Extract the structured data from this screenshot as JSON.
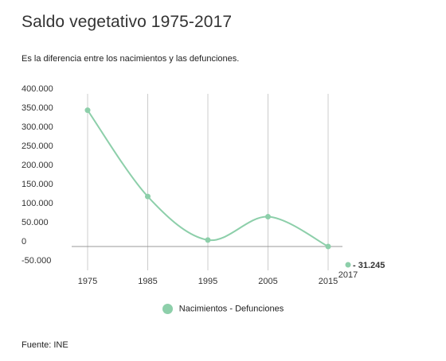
{
  "title": "Saldo vegetativo 1975-2017",
  "subtitle": "Es la diferencia entre los nacimientos y las defunciones.",
  "source": "Fuente: INE",
  "colors": {
    "series": "#8dcfaa",
    "grid": "#cccccc",
    "axis": "#999999",
    "text": "#333333"
  },
  "chart_data": {
    "type": "line",
    "title": "Saldo vegetativo 1975-2017",
    "xlabel": "",
    "ylabel": "",
    "x": [
      1975,
      1985,
      1995,
      2005,
      2015,
      2017
    ],
    "x_tick_labels": [
      "1975",
      "1985",
      "1995",
      "2005",
      "2015"
    ],
    "extra_x_label": "2017",
    "y_tick_labels": [
      "400.000",
      "350.000",
      "300.000",
      "250.000",
      "200.000",
      "150.000",
      "100.000",
      "50.000",
      "0",
      "-50.000"
    ],
    "ylim": [
      -50000,
      400000
    ],
    "smooth": true,
    "grid": "vertical",
    "legend_position": "bottom",
    "series": [
      {
        "name": "Nacimientos - Defunciones",
        "values": [
          357000,
          131000,
          17000,
          78000,
          0,
          -31245
        ]
      }
    ],
    "annotations": [
      {
        "x": 2017,
        "text": "- 31.245"
      }
    ]
  }
}
